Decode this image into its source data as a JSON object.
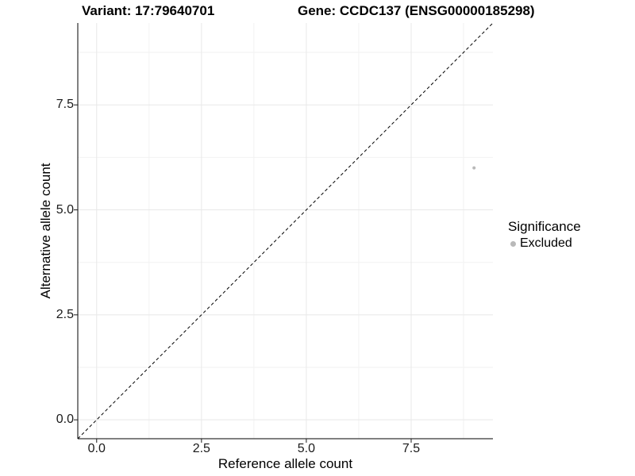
{
  "header": {
    "variant_title": "Variant: 17:79640701",
    "gene_title": "Gene: CCDC137 (ENSG00000185298)"
  },
  "chart_data": {
    "type": "scatter",
    "title_left": "Variant: 17:79640701",
    "title_right": "Gene: CCDC137 (ENSG00000185298)",
    "xlabel": "Reference allele count",
    "ylabel": "Alternative allele count",
    "xlim": [
      -0.45,
      9.45
    ],
    "ylim": [
      -0.45,
      9.45
    ],
    "x_ticks": [
      0.0,
      2.5,
      5.0,
      7.5
    ],
    "y_ticks": [
      0.0,
      2.5,
      5.0,
      7.5
    ],
    "x_tick_labels": [
      "0.0",
      "2.5",
      "5.0",
      "7.5"
    ],
    "y_tick_labels": [
      "0.0",
      "2.5",
      "5.0",
      "7.5"
    ],
    "x_minor_ticks": [
      1.25,
      3.75,
      6.25,
      8.75
    ],
    "y_minor_ticks": [
      1.25,
      3.75,
      6.25,
      8.75
    ],
    "grid": true,
    "legend_position": "right",
    "reference_line": {
      "kind": "identity",
      "x1": -0.45,
      "y1": -0.45,
      "x2": 9.45,
      "y2": 9.45,
      "style": "dashed",
      "color": "#000000"
    },
    "series": [
      {
        "name": "Excluded",
        "color": "#b9b9b9",
        "point_radius": 2,
        "points": [
          {
            "x": 9,
            "y": 6
          }
        ]
      }
    ],
    "legend": {
      "title": "Significance",
      "items": [
        {
          "label": "Excluded",
          "color": "#b9b9b9"
        }
      ]
    }
  },
  "colors": {
    "background": "#ffffff",
    "axis_line": "#000000",
    "tick_mark": "#1a1a1a",
    "grid_major": "#e8e8e8",
    "grid_minor": "#f2f2f2",
    "text": "#000000"
  }
}
